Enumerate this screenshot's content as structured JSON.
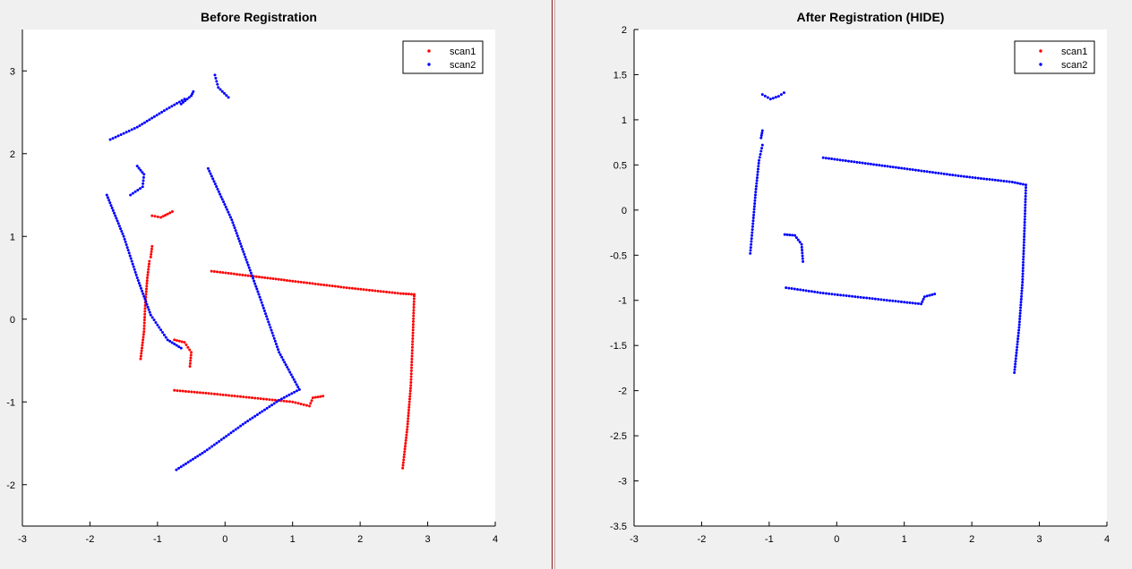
{
  "chart_data": [
    {
      "type": "scatter",
      "title": "Before Registration",
      "xlim": [
        -3,
        4
      ],
      "ylim": [
        -2.5,
        3.5
      ],
      "xticks": [
        -3,
        -2,
        -1,
        0,
        1,
        2,
        3,
        4
      ],
      "yticks": [
        -2,
        -1,
        0,
        1,
        2,
        3
      ],
      "legend": {
        "position": "top-right",
        "entries": [
          "scan1",
          "scan2"
        ]
      },
      "series": [
        {
          "name": "scan1",
          "color": "#ff0000",
          "polylines": [
            [
              [
                -1.25,
                -0.48
              ],
              [
                -1.2,
                -0.15
              ],
              [
                -1.18,
                0.2
              ],
              [
                -1.15,
                0.5
              ],
              [
                -1.12,
                0.7
              ]
            ],
            [
              [
                -1.1,
                0.75
              ],
              [
                -1.08,
                0.88
              ]
            ],
            [
              [
                -1.08,
                1.25
              ],
              [
                -0.95,
                1.23
              ],
              [
                -0.85,
                1.27
              ],
              [
                -0.78,
                1.3
              ]
            ],
            [
              [
                -0.75,
                -0.25
              ],
              [
                -0.6,
                -0.28
              ],
              [
                -0.5,
                -0.4
              ],
              [
                -0.52,
                -0.57
              ]
            ],
            [
              [
                -0.2,
                0.58
              ],
              [
                0.3,
                0.53
              ],
              [
                1.0,
                0.46
              ],
              [
                1.8,
                0.38
              ],
              [
                2.6,
                0.31
              ],
              [
                2.8,
                0.3
              ]
            ],
            [
              [
                2.8,
                0.28
              ],
              [
                2.78,
                -0.2
              ],
              [
                2.75,
                -0.8
              ],
              [
                2.7,
                -1.3
              ],
              [
                2.63,
                -1.8
              ]
            ],
            [
              [
                -0.75,
                -0.86
              ],
              [
                -0.2,
                -0.9
              ],
              [
                0.4,
                -0.95
              ],
              [
                1.0,
                -1.0
              ],
              [
                1.25,
                -1.05
              ],
              [
                1.3,
                -0.95
              ],
              [
                1.45,
                -0.93
              ]
            ]
          ]
        },
        {
          "name": "scan2",
          "color": "#0000ff",
          "polylines": [
            [
              [
                -1.7,
                2.17
              ],
              [
                -1.3,
                2.32
              ],
              [
                -0.9,
                2.52
              ],
              [
                -0.6,
                2.66
              ]
            ],
            [
              [
                -0.65,
                2.6
              ],
              [
                -0.5,
                2.7
              ],
              [
                -0.47,
                2.75
              ]
            ],
            [
              [
                -0.15,
                2.95
              ],
              [
                -0.1,
                2.8
              ],
              [
                0.05,
                2.68
              ]
            ],
            [
              [
                -1.3,
                1.85
              ],
              [
                -1.2,
                1.75
              ],
              [
                -1.22,
                1.6
              ],
              [
                -1.4,
                1.5
              ]
            ],
            [
              [
                -1.75,
                1.5
              ],
              [
                -1.5,
                1.0
              ],
              [
                -1.3,
                0.5
              ],
              [
                -1.1,
                0.05
              ],
              [
                -0.85,
                -0.25
              ],
              [
                -0.65,
                -0.35
              ]
            ],
            [
              [
                -0.25,
                1.82
              ],
              [
                0.1,
                1.2
              ],
              [
                0.5,
                0.3
              ],
              [
                0.8,
                -0.4
              ],
              [
                1.1,
                -0.85
              ]
            ],
            [
              [
                -0.72,
                -1.82
              ],
              [
                -0.3,
                -1.6
              ],
              [
                0.3,
                -1.25
              ],
              [
                0.8,
                -0.98
              ],
              [
                1.1,
                -0.85
              ]
            ]
          ]
        }
      ]
    },
    {
      "type": "scatter",
      "title": "After Registration (HIDE)",
      "xlim": [
        -3,
        4
      ],
      "ylim": [
        -3.5,
        2
      ],
      "xticks": [
        -3,
        -2,
        -1,
        0,
        1,
        2,
        3,
        4
      ],
      "yticks": [
        -3.5,
        -3,
        -2.5,
        -2,
        -1.5,
        -1,
        -0.5,
        0,
        0.5,
        1,
        1.5,
        2
      ],
      "legend": {
        "position": "top-right",
        "entries": [
          "scan1",
          "scan2"
        ]
      },
      "series": [
        {
          "name": "scan1",
          "color": "#ff0000",
          "polylines": []
        },
        {
          "name": "scan2",
          "color": "#0000ff",
          "polylines": [
            [
              [
                -1.28,
                -0.48
              ],
              [
                -1.24,
                -0.15
              ],
              [
                -1.2,
                0.2
              ],
              [
                -1.15,
                0.55
              ],
              [
                -1.1,
                0.72
              ]
            ],
            [
              [
                -1.12,
                0.8
              ],
              [
                -1.1,
                0.88
              ]
            ],
            [
              [
                -1.1,
                1.28
              ],
              [
                -0.98,
                1.23
              ],
              [
                -0.86,
                1.26
              ],
              [
                -0.78,
                1.3
              ]
            ],
            [
              [
                -0.77,
                -0.27
              ],
              [
                -0.62,
                -0.28
              ],
              [
                -0.52,
                -0.38
              ],
              [
                -0.5,
                -0.57
              ]
            ],
            [
              [
                -0.2,
                0.58
              ],
              [
                0.3,
                0.53
              ],
              [
                1.0,
                0.46
              ],
              [
                1.8,
                0.38
              ],
              [
                2.6,
                0.31
              ],
              [
                2.8,
                0.28
              ]
            ],
            [
              [
                2.8,
                0.25
              ],
              [
                2.78,
                -0.2
              ],
              [
                2.75,
                -0.8
              ],
              [
                2.7,
                -1.3
              ],
              [
                2.63,
                -1.8
              ]
            ],
            [
              [
                -0.75,
                -0.86
              ],
              [
                -0.2,
                -0.92
              ],
              [
                0.4,
                -0.97
              ],
              [
                1.0,
                -1.02
              ],
              [
                1.25,
                -1.04
              ],
              [
                1.3,
                -0.96
              ],
              [
                1.45,
                -0.93
              ]
            ]
          ]
        }
      ]
    }
  ]
}
